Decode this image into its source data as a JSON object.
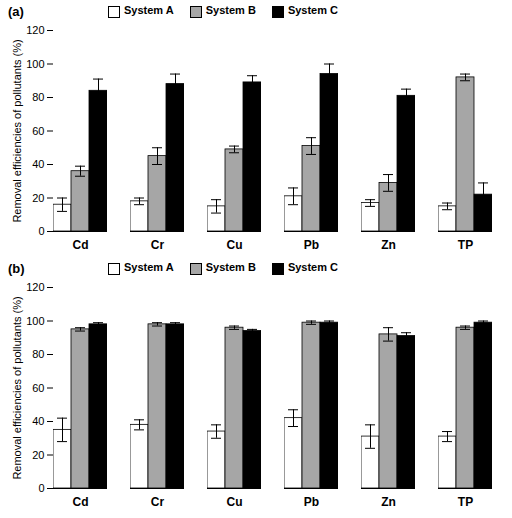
{
  "chart_data": [
    {
      "type": "bar",
      "title": "(a)",
      "y_label": "Removal efficiencies of pollutants (%)",
      "categories": [
        "Cd",
        "Cr",
        "Cu",
        "Pb",
        "Zn",
        "TP"
      ],
      "series": [
        {
          "name": "System A",
          "color": "#ffffff",
          "values": [
            16,
            18,
            15,
            21,
            17,
            15
          ],
          "errors": [
            4,
            2,
            4,
            5,
            2,
            2
          ]
        },
        {
          "name": "System B",
          "color": "#a6a6a6",
          "values": [
            36,
            45,
            49,
            51,
            29,
            92
          ],
          "errors": [
            3,
            5,
            2,
            5,
            5,
            2
          ]
        },
        {
          "name": "System C",
          "color": "#000000",
          "values": [
            84,
            88,
            89,
            94,
            81,
            22
          ],
          "errors": [
            7,
            6,
            4,
            6,
            4,
            7
          ]
        }
      ],
      "ylim": [
        0,
        120
      ],
      "yticks": [
        0,
        20,
        40,
        60,
        80,
        100,
        120
      ],
      "legend": "top"
    },
    {
      "type": "bar",
      "title": "(b)",
      "y_label": "Removal efficiencies of pollutants (%)",
      "categories": [
        "Cd",
        "Cr",
        "Cu",
        "Pb",
        "Zn",
        "TP"
      ],
      "series": [
        {
          "name": "System A",
          "color": "#ffffff",
          "values": [
            35,
            38,
            34,
            42,
            31,
            31
          ],
          "errors": [
            7,
            3,
            4,
            5,
            7,
            3
          ]
        },
        {
          "name": "System B",
          "color": "#a6a6a6",
          "values": [
            95,
            98,
            96,
            99,
            92,
            96
          ],
          "errors": [
            1,
            1,
            1,
            1,
            4,
            1
          ]
        },
        {
          "name": "System C",
          "color": "#000000",
          "values": [
            98,
            98,
            94,
            99,
            91,
            99
          ],
          "errors": [
            1,
            1,
            1,
            1,
            2,
            1
          ]
        }
      ],
      "ylim": [
        0,
        120
      ],
      "yticks": [
        0,
        20,
        40,
        60,
        80,
        100,
        120
      ],
      "legend": "top"
    }
  ]
}
